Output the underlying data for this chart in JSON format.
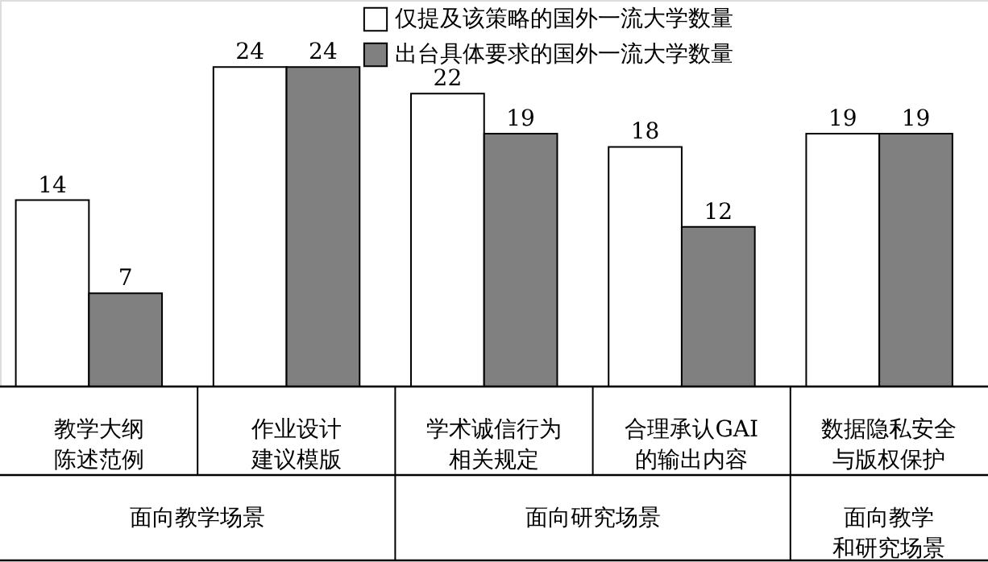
{
  "chart_data": {
    "type": "bar",
    "categories": [
      "教学大纲陈述范例",
      "作业设计建议模版",
      "学术诚信行为相关规定",
      "合理承认GAI的输出内容",
      "数据隐私安全与版权保护"
    ],
    "series": [
      {
        "name": "仅提及该策略的国外一流大学数量",
        "color": "#ffffff",
        "values": [
          14,
          24,
          22,
          18,
          19
        ]
      },
      {
        "name": "出台具体要求的国外一流大学数量",
        "color": "#808080",
        "values": [
          7,
          24,
          19,
          12,
          19
        ]
      }
    ],
    "data_labels": true,
    "legend": "top right",
    "grid": false,
    "annotations": [
      "面向教学场景",
      "面向研究场景",
      "面向教学和研究场景"
    ]
  }
}
